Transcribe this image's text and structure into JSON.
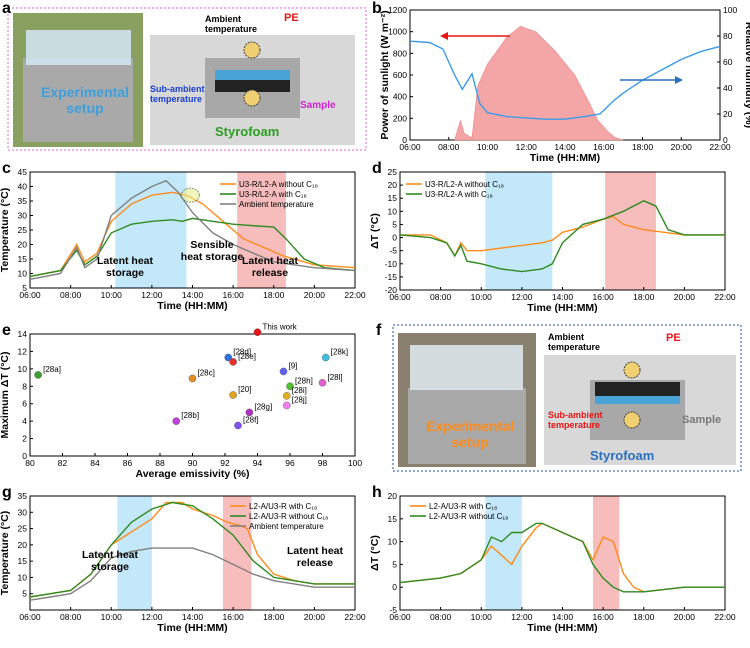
{
  "panels": {
    "a": "a",
    "b": "b",
    "c": "c",
    "d": "d",
    "e": "e",
    "f": "f",
    "g": "g",
    "h": "h"
  },
  "photo_a": {
    "setup": "Experimental setup",
    "ambient": "Ambient temperature",
    "pe": "PE",
    "sub": "Sub-ambient temperature",
    "sample": "Sample",
    "foam": "Styrofoam"
  },
  "photo_f": {
    "setup": "Experimental setup",
    "ambient": "Ambient temperature",
    "pe": "PE",
    "sub": "Sub-ambient temperature",
    "sample": "Sample",
    "foam": "Styrofoam"
  },
  "colors": {
    "orange": "#ff8c1a",
    "green": "#2e8b20",
    "gray": "#808080",
    "blue": "#3b9be8",
    "red": "#e81414",
    "pink": "#f4a6a6",
    "lightblue": "#aee0f7"
  },
  "chart_data": [
    {
      "id": "b",
      "type": "area",
      "xlabel": "Time (HH:MM)",
      "ylabel": "Power of sunlight (W m⁻²)",
      "y2label": "Relative humidity (%)",
      "xticks": [
        "06:00",
        "08:00",
        "10:00",
        "12:00",
        "14:00",
        "16:00",
        "18:00",
        "20:00",
        "22:00"
      ],
      "ylim": [
        0,
        1200
      ],
      "y2lim": [
        0,
        100
      ],
      "yticks": [
        "0",
        "200",
        "400",
        "600",
        "800",
        "1000",
        "1200"
      ],
      "y2ticks": [
        "0",
        "20",
        "40",
        "60",
        "80",
        "100"
      ],
      "series": [
        {
          "name": "Power of sunlight",
          "x": [
            8.3,
            8.6,
            8.8,
            9.2,
            9.5,
            10,
            11,
            11.7,
            12.5,
            13.5,
            14.5,
            15.2,
            15.7,
            16.2,
            16.6,
            17
          ],
          "y": [
            0,
            180,
            60,
            20,
            500,
            700,
            950,
            1050,
            1000,
            820,
            600,
            360,
            180,
            80,
            20,
            0
          ]
        },
        {
          "name": "Relative humidity",
          "x": [
            6,
            7,
            7.7,
            8.3,
            8.7,
            9.2,
            9.6,
            10,
            11,
            12,
            13,
            14,
            15,
            15.8,
            16.5,
            17,
            18,
            19,
            20,
            21,
            22
          ],
          "y": [
            76,
            75,
            70,
            50,
            39,
            51,
            28,
            21,
            18,
            17,
            16,
            16,
            18,
            20,
            30,
            36,
            46,
            54,
            62,
            68,
            72
          ]
        }
      ]
    },
    {
      "id": "c",
      "type": "line",
      "xlabel": "Time (HH:MM)",
      "ylabel": "Temperature (°C)",
      "ylim": [
        5,
        45
      ],
      "xticks": [
        "06:00",
        "08:00",
        "10:00",
        "12:00",
        "14:00",
        "16:00",
        "18:00",
        "20:00",
        "22:00"
      ],
      "yticks": [
        "5",
        "10",
        "15",
        "20",
        "25",
        "30",
        "35",
        "40",
        "45"
      ],
      "legend": [
        "U3-R/L2-A without C₁₈",
        "U3-R/L2-A with C₁₈",
        "Ambient temperature"
      ],
      "annotations": [
        "Latent heat storage",
        "Sensible heat storage",
        "Latent heat release"
      ],
      "series": [
        {
          "name": "U3-R/L2-A without C18",
          "x": [
            6,
            7.5,
            8.3,
            8.7,
            9.3,
            10,
            11,
            12,
            13,
            13.7,
            14.5,
            15.5,
            16.5,
            17.5,
            18.5,
            20,
            22
          ],
          "y": [
            9,
            11,
            20,
            14,
            17,
            28,
            34,
            37,
            38,
            37,
            34,
            28,
            22,
            19,
            16,
            13,
            12
          ]
        },
        {
          "name": "U3-R/L2-A with C18",
          "x": [
            6,
            7.5,
            8.3,
            8.7,
            9.3,
            10,
            11,
            12,
            13,
            13.5,
            14,
            15,
            16,
            17,
            18,
            18.6,
            19.5,
            20.5,
            22
          ],
          "y": [
            9,
            11,
            18,
            13,
            16,
            24,
            27,
            28,
            28.5,
            28,
            29,
            28,
            27,
            26.5,
            26,
            22,
            15,
            12,
            11
          ]
        },
        {
          "name": "Ambient temperature",
          "x": [
            6,
            7.5,
            8.3,
            8.7,
            9.3,
            10,
            11,
            12,
            12.7,
            13.3,
            14,
            15,
            16,
            17,
            18,
            20,
            22
          ],
          "y": [
            8,
            10,
            19,
            12,
            15,
            30,
            36,
            40,
            42,
            38,
            31,
            24,
            20,
            17,
            14,
            12,
            11
          ]
        }
      ]
    },
    {
      "id": "d",
      "type": "line",
      "xlabel": "Time (HH:MM)",
      "ylabel": "ΔT (°C)",
      "ylim": [
        -20,
        25
      ],
      "xticks": [
        "06:00",
        "08:00",
        "10:00",
        "12:00",
        "14:00",
        "16:00",
        "18:00",
        "20:00",
        "22:00"
      ],
      "yticks": [
        "-20",
        "-15",
        "-10",
        "-5",
        "0",
        "5",
        "10",
        "15",
        "20",
        "25"
      ],
      "legend": [
        "U3-R/L2-A without C₁₈",
        "U3-R/L2-A with C₁₈"
      ],
      "series": [
        {
          "name": "without C18",
          "x": [
            6,
            7.5,
            8.3,
            8.7,
            9,
            9.3,
            10,
            11,
            12,
            13,
            13.5,
            14,
            15,
            16,
            16.5,
            17,
            18,
            20,
            22
          ],
          "y": [
            1,
            1,
            -2,
            -7,
            -2,
            -5,
            -5,
            -4,
            -3,
            -2,
            -1,
            2,
            4,
            7,
            8,
            5,
            3,
            1,
            1
          ]
        },
        {
          "name": "with C18",
          "x": [
            6,
            7.5,
            8.3,
            8.7,
            9,
            9.3,
            10,
            11,
            12,
            13,
            13.5,
            14,
            15,
            16,
            17,
            18,
            18.6,
            19.2,
            20,
            22
          ],
          "y": [
            1,
            0,
            -2,
            -7,
            -3,
            -9,
            -10,
            -12,
            -13,
            -12,
            -10,
            -2,
            5,
            7,
            10,
            14,
            12,
            3,
            1,
            1
          ]
        }
      ]
    },
    {
      "id": "e",
      "type": "scatter",
      "xlabel": "Average emissivity (%)",
      "ylabel": "Maximum ΔT (°C)",
      "xlim": [
        80,
        100
      ],
      "ylim": [
        0,
        14
      ],
      "xticks": [
        "80",
        "82",
        "84",
        "86",
        "88",
        "90",
        "92",
        "94",
        "96",
        "98",
        "100"
      ],
      "yticks": [
        "0",
        "2",
        "4",
        "6",
        "8",
        "10",
        "12",
        "14"
      ],
      "points": [
        {
          "label": "This work",
          "x": 94,
          "y": 14.2
        },
        {
          "label": "[28a]",
          "x": 80.5,
          "y": 9.3
        },
        {
          "label": "[28b]",
          "x": 89,
          "y": 4
        },
        {
          "label": "[28c]",
          "x": 90,
          "y": 8.9
        },
        {
          "label": "[28d]",
          "x": 92.2,
          "y": 11.3
        },
        {
          "label": "[28e]",
          "x": 92.5,
          "y": 10.8
        },
        {
          "label": "[20]",
          "x": 92.5,
          "y": 7
        },
        {
          "label": "[28f]",
          "x": 92.8,
          "y": 3.5
        },
        {
          "label": "[28g]",
          "x": 93.5,
          "y": 5
        },
        {
          "label": "[9]",
          "x": 95.6,
          "y": 9.7
        },
        {
          "label": "[28h]",
          "x": 96,
          "y": 8
        },
        {
          "label": "[28i]",
          "x": 95.8,
          "y": 6.9
        },
        {
          "label": "[28j]",
          "x": 95.8,
          "y": 5.8
        },
        {
          "label": "[28k]",
          "x": 98.2,
          "y": 11.3
        },
        {
          "label": "[28l]",
          "x": 98,
          "y": 8.4
        }
      ]
    },
    {
      "id": "g",
      "type": "line",
      "xlabel": "Time (HH:MM)",
      "ylabel": "Temperature (°C)",
      "ylim": [
        0,
        35
      ],
      "xticks": [
        "06:00",
        "08:00",
        "10:00",
        "12:00",
        "14:00",
        "16:00",
        "18:00",
        "20:00",
        "22:00"
      ],
      "yticks": [
        "5",
        "10",
        "15",
        "20",
        "25",
        "30",
        "35"
      ],
      "legend": [
        "L2-A/U3-R with C₁₈",
        "L2-A/U3-R without C₁₈",
        "Ambient temperature"
      ],
      "annotations": [
        "Latent heat storage",
        "Latent heat release"
      ],
      "series": [
        {
          "name": "with C18",
          "x": [
            6,
            7,
            8,
            9,
            10,
            11,
            12,
            12.7,
            13.5,
            14,
            15,
            15.7,
            16.3,
            16.7,
            17.2,
            18,
            19,
            20,
            22
          ],
          "y": [
            4,
            5,
            6,
            11,
            20,
            24,
            28,
            33,
            33,
            31,
            29,
            27,
            26,
            25,
            17,
            11,
            9,
            8,
            8
          ]
        },
        {
          "name": "without C18",
          "x": [
            6,
            7,
            8,
            9,
            10,
            11,
            12,
            13,
            14,
            15,
            16,
            17,
            18,
            19,
            20,
            22
          ],
          "y": [
            4,
            5,
            6,
            11,
            20,
            27,
            31,
            33,
            32,
            28,
            23,
            15,
            10,
            9,
            8,
            8
          ]
        },
        {
          "name": "Ambient temperature",
          "x": [
            6,
            7,
            8,
            9,
            10,
            11,
            12,
            13,
            14,
            15,
            16,
            17,
            18,
            19,
            20,
            22
          ],
          "y": [
            3,
            4,
            5,
            9,
            16,
            18,
            19,
            19,
            19,
            17,
            14,
            11,
            9,
            8,
            7,
            7
          ]
        }
      ]
    },
    {
      "id": "h",
      "type": "line",
      "xlabel": "Time (HH:MM)",
      "ylabel": "ΔT (°C)",
      "ylim": [
        -5,
        20
      ],
      "xticks": [
        "06:00",
        "08:00",
        "10:00",
        "12:00",
        "14:00",
        "16:00",
        "18:00",
        "20:00",
        "22:00"
      ],
      "yticks": [
        "-5",
        "0",
        "5",
        "10",
        "15",
        "20"
      ],
      "legend": [
        "L2-A/U3-R with C₁₈",
        "L2-A/U3-R without C₁₈"
      ],
      "series": [
        {
          "name": "with C18",
          "x": [
            6,
            8,
            9,
            10,
            10.5,
            11,
            11.5,
            12,
            12.7,
            13,
            14,
            15,
            15.5,
            16,
            16.5,
            17,
            17.5,
            18,
            20,
            22
          ],
          "y": [
            1,
            2,
            3,
            6,
            9,
            7,
            5,
            9,
            13,
            14,
            12,
            10,
            6,
            11,
            10,
            3,
            0,
            -1,
            0,
            0
          ]
        },
        {
          "name": "without C18",
          "x": [
            6,
            8,
            9,
            10,
            10.5,
            11,
            11.5,
            12,
            12.7,
            13,
            14,
            15,
            15.5,
            16,
            16.5,
            17,
            17.5,
            18,
            20,
            22
          ],
          "y": [
            1,
            2,
            3,
            6,
            11,
            10,
            12,
            12,
            14,
            14,
            12,
            10,
            5,
            2,
            0,
            -1,
            -1,
            -1,
            0,
            0
          ]
        }
      ]
    }
  ]
}
